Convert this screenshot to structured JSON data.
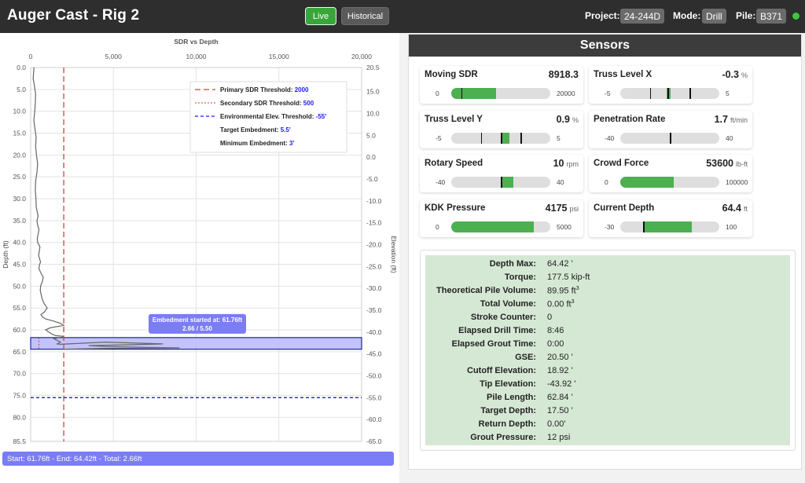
{
  "header": {
    "title": "Auger Cast - Rig 2",
    "live_label": "Live",
    "historical_label": "Historical",
    "project_label": "Project:",
    "project_value": "24-244D",
    "mode_label": "Mode:",
    "mode_value": "Drill",
    "pile_label": "Pile:",
    "pile_value": "B371",
    "status_color": "#3cc83c"
  },
  "chart_data": {
    "type": "line",
    "title": "SDR vs Depth",
    "ylabel": "Depth (ft)",
    "y2label": "Elevation (ft)",
    "xlim": [
      0,
      20000
    ],
    "ylim": [
      0,
      85.5
    ],
    "y2lim": [
      20.5,
      -65
    ],
    "x_ticks": [
      0,
      5000,
      10000,
      15000,
      20000
    ],
    "x_tick_labels": [
      "0",
      "5,000",
      "10,000",
      "15,000",
      "20,000"
    ],
    "y_ticks": [
      0,
      5,
      10,
      15,
      20,
      25,
      30,
      35,
      40,
      45,
      50,
      55,
      60,
      65,
      70,
      75,
      80,
      85.5
    ],
    "y_tick_labels": [
      "0.0",
      "5.0",
      "10.0",
      "15.0",
      "20.0",
      "25.0",
      "30.0",
      "35.0",
      "40.0",
      "45.0",
      "50.0",
      "55.0",
      "60.0",
      "65.0",
      "70.0",
      "75.0",
      "80.0",
      "85.5"
    ],
    "y2_ticks": [
      20.5,
      15,
      10,
      5,
      0,
      -5,
      -10,
      -15,
      -20,
      -25,
      -30,
      -35,
      -40,
      -45,
      -50,
      -55,
      -60,
      -65
    ],
    "y2_tick_labels": [
      "20.5",
      "15.0",
      "10.0",
      "5.0",
      "0.0",
      "-5.0",
      "-10.0",
      "-15.0",
      "-20.0",
      "-25.0",
      "-30.0",
      "-35.0",
      "-40.0",
      "-45.0",
      "-50.0",
      "-55.0",
      "-60.0",
      "-65.0"
    ],
    "grid": true,
    "legend_position": "top-right",
    "legend": [
      {
        "label": "Primary SDR Threshold: ",
        "value": "2000",
        "style": "red-long-dash"
      },
      {
        "label": "Secondary SDR Threshold: ",
        "value": "500",
        "style": "red-short-dash"
      },
      {
        "label": "Environmental Elev. Threshold: ",
        "value": "-55'",
        "style": "blue-dash"
      },
      {
        "label": "Target Embedment: ",
        "value": "5.5'",
        "style": "none"
      },
      {
        "label": "Minimum Embedment: ",
        "value": "3'",
        "style": "none"
      }
    ],
    "primary_sdr_threshold": 2000,
    "secondary_sdr_threshold": 500,
    "env_elev_threshold_depth": 75.5,
    "embedment_band": [
      61.76,
      64.42
    ],
    "annotation_line1": "Embedment started at: 61.76ft",
    "annotation_line2": "2.66 / 5.50",
    "colors": {
      "primary": "#e53935",
      "env": "#1a1aff",
      "trace": "#666666",
      "band": "#b8b8f5",
      "band_edge": "#2222aa",
      "annotation": "#7b7cf7"
    },
    "series": [
      {
        "x": [
          200,
          180,
          150,
          220,
          300,
          280,
          250,
          190,
          260,
          330,
          300,
          350,
          420,
          380,
          300,
          280,
          320,
          340,
          400,
          450,
          380,
          420,
          500,
          460,
          400,
          420,
          560,
          520,
          480,
          560,
          600,
          540,
          500,
          620,
          760,
          700,
          600,
          580,
          640,
          700,
          820,
          1000,
          800,
          620,
          700,
          900,
          1400,
          1800,
          2000,
          1200,
          900,
          1100,
          1300,
          1500,
          2000,
          1700,
          1400,
          1500,
          1600,
          1700,
          1800,
          1700,
          1600,
          1800,
          4500,
          8000,
          6000,
          3500,
          4500,
          7000,
          9000,
          5000,
          2000
        ],
        "y": [
          0,
          1,
          2.5,
          4,
          6,
          8,
          10,
          12,
          14,
          16,
          18,
          20,
          22,
          24,
          26,
          28,
          30,
          32,
          33,
          34,
          35,
          36,
          37,
          38,
          39,
          40,
          41,
          42,
          43,
          44,
          44.5,
          45,
          46,
          47,
          48,
          49,
          50,
          51,
          52,
          53,
          54,
          55,
          56,
          56.5,
          57,
          57.5,
          58,
          58.5,
          59,
          59.5,
          60,
          60.5,
          61,
          61.3,
          61.5,
          61.8,
          62,
          62.2,
          62.4,
          62.6,
          62.8,
          63,
          63.2,
          63.3,
          62.8,
          63.2,
          63.4,
          63.6,
          63.8,
          64,
          64.1,
          64.2,
          64.42
        ]
      }
    ]
  },
  "footer_text": "Start: 61.76ft - End: 64.42ft - Total: 2.66ft",
  "sensors": {
    "title": "Sensors",
    "cards": [
      {
        "name": "Moving SDR",
        "value": "8918.3",
        "unit": "",
        "min": "0",
        "max": "20000",
        "fill_from": 0,
        "fill_to": 0.45,
        "ticks": [
          0.1
        ]
      },
      {
        "name": "Truss Level X",
        "value": "-0.3",
        "unit": "%",
        "min": "-5",
        "max": "5",
        "fill_from": 0.47,
        "fill_to": 0.51,
        "ticks": [
          0.3,
          0.48,
          0.7
        ]
      },
      {
        "name": "Truss Level Y",
        "value": "0.9",
        "unit": "%",
        "min": "-5",
        "max": "5",
        "fill_from": 0.5,
        "fill_to": 0.59,
        "ticks": [
          0.3,
          0.5,
          0.7
        ]
      },
      {
        "name": "Penetration Rate",
        "value": "1.7",
        "unit": "ft/min",
        "min": "-40",
        "max": "40",
        "fill_from": 0.5,
        "fill_to": 0.5,
        "ticks": [
          0.5
        ]
      },
      {
        "name": "Rotary Speed",
        "value": "10",
        "unit": "rpm",
        "min": "-40",
        "max": "40",
        "fill_from": 0.5,
        "fill_to": 0.625,
        "ticks": [
          0.5
        ]
      },
      {
        "name": "Crowd Force",
        "value": "53600",
        "unit": "lb-ft",
        "min": "0",
        "max": "100000",
        "fill_from": 0,
        "fill_to": 0.536,
        "ticks": []
      },
      {
        "name": "KDK Pressure",
        "value": "4175",
        "unit": "psi",
        "min": "0",
        "max": "5000",
        "fill_from": 0,
        "fill_to": 0.835,
        "ticks": []
      },
      {
        "name": "Current Depth",
        "value": "64.4",
        "unit": "ft",
        "min": "-30",
        "max": "100",
        "fill_from": 0.231,
        "fill_to": 0.726,
        "ticks": [
          0.231
        ]
      }
    ]
  },
  "stats": [
    {
      "label": "Depth Max:",
      "value": "64.42 '"
    },
    {
      "label": "Torque:",
      "value": "177.5 kip-ft"
    },
    {
      "label": "Theoretical Pile Volume:",
      "value": "89.95 ft",
      "sup": "3"
    },
    {
      "label": "Total Volume:",
      "value": "0.00 ft",
      "sup": "3"
    },
    {
      "label": "Stroke Counter:",
      "value": "0"
    },
    {
      "label": "Elapsed Drill Time:",
      "value": "8:46"
    },
    {
      "label": "Elapsed Grout Time:",
      "value": "0:00"
    },
    {
      "label": "GSE:",
      "value": "20.50 '"
    },
    {
      "label": "Cutoff Elevation:",
      "value": "18.92 '"
    },
    {
      "label": "Tip Elevation:",
      "value": "-43.92 '"
    },
    {
      "label": "Pile Length:",
      "value": "62.84 '"
    },
    {
      "label": "Target Depth:",
      "value": "17.50 '"
    },
    {
      "label": "Return Depth:",
      "value": "0.00'"
    },
    {
      "label": "Grout Pressure:",
      "value": "12 psi"
    }
  ]
}
